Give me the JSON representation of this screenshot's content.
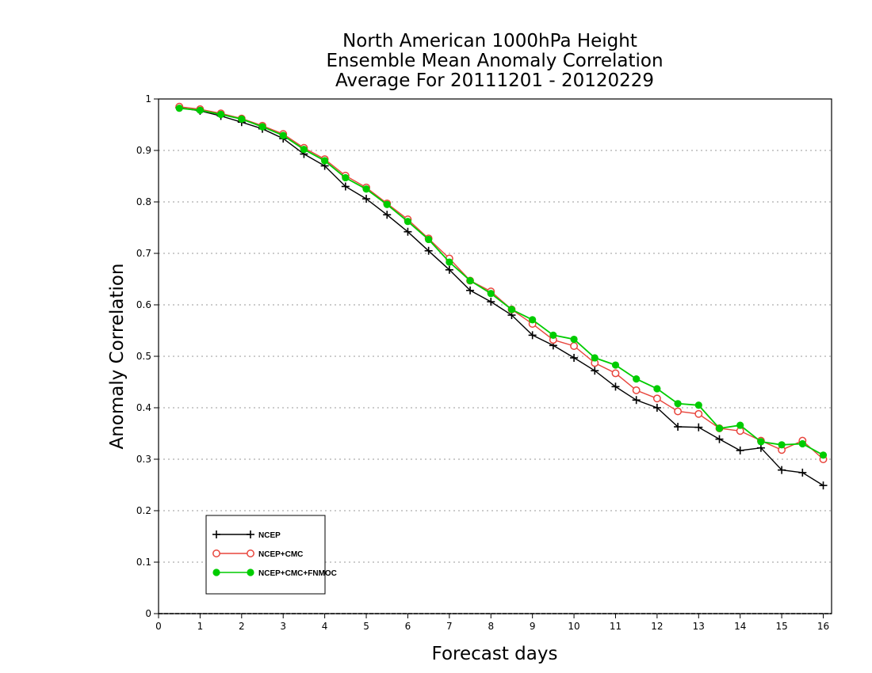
{
  "chart_data": {
    "type": "line",
    "title": [
      "North American 1000hPa Height",
      "Ensemble Mean Anomaly Correlation",
      "Average For 20111201 - 20120229"
    ],
    "xlabel": "Forecast days",
    "ylabel": "Anomaly Correlation",
    "xlim": [
      0,
      16.2
    ],
    "ylim": [
      0,
      1
    ],
    "xticks": [
      "0",
      "1",
      "2",
      "3",
      "4",
      "5",
      "6",
      "7",
      "8",
      "9",
      "10",
      "11",
      "12",
      "13",
      "14",
      "15",
      "16"
    ],
    "yticks": [
      "0",
      "0.1",
      "0.2",
      "0.3",
      "0.4",
      "0.5",
      "0.6",
      "0.7",
      "0.8",
      "0.9",
      "1"
    ],
    "grid": "horizontal-dotted",
    "legend_position": "bottom-left",
    "x": [
      0.5,
      1,
      1.5,
      2,
      2.5,
      3,
      3.5,
      4,
      4.5,
      5,
      5.5,
      6,
      6.5,
      7,
      7.5,
      8,
      8.5,
      9,
      9.5,
      10,
      10.5,
      11,
      11.5,
      12,
      12.5,
      13,
      13.5,
      14,
      14.5,
      15,
      15.5,
      16
    ],
    "series": [
      {
        "name": "NCEP",
        "color": "#000000",
        "marker": "plus",
        "values": [
          0.983,
          0.977,
          0.967,
          0.955,
          0.942,
          0.923,
          0.893,
          0.87,
          0.83,
          0.806,
          0.775,
          0.742,
          0.705,
          0.668,
          0.628,
          0.606,
          0.58,
          0.541,
          0.521,
          0.497,
          0.472,
          0.441,
          0.415,
          0.4,
          0.363,
          0.362,
          0.339,
          0.317,
          0.322,
          0.279,
          0.274,
          0.249
        ]
      },
      {
        "name": "NCEP+CMC",
        "color": "#e8453c",
        "marker": "open-circle",
        "values": [
          0.985,
          0.98,
          0.972,
          0.962,
          0.948,
          0.932,
          0.905,
          0.883,
          0.851,
          0.828,
          0.797,
          0.766,
          0.729,
          0.69,
          0.647,
          0.626,
          0.591,
          0.563,
          0.532,
          0.52,
          0.487,
          0.467,
          0.434,
          0.418,
          0.393,
          0.388,
          0.36,
          0.355,
          0.336,
          0.318,
          0.336,
          0.3
        ]
      },
      {
        "name": "NCEP+CMC+FNMOC",
        "color": "#00cc00",
        "marker": "filled-circle",
        "values": [
          0.982,
          0.978,
          0.97,
          0.961,
          0.946,
          0.929,
          0.902,
          0.88,
          0.847,
          0.825,
          0.795,
          0.762,
          0.727,
          0.683,
          0.647,
          0.622,
          0.591,
          0.571,
          0.541,
          0.533,
          0.497,
          0.483,
          0.456,
          0.437,
          0.408,
          0.405,
          0.36,
          0.366,
          0.334,
          0.328,
          0.33,
          0.308
        ]
      }
    ]
  }
}
